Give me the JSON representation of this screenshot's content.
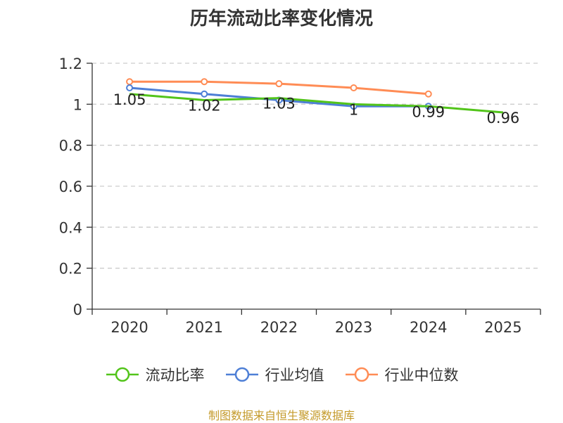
{
  "chart_data": {
    "type": "line",
    "title": "历年流动比率变化情况",
    "categories": [
      "2020",
      "2021",
      "2022",
      "2023",
      "2024",
      "2025"
    ],
    "ylim": [
      0,
      1.2
    ],
    "yticks": [
      "0",
      "0.2",
      "0.4",
      "0.6",
      "0.8",
      "1",
      "1.2"
    ],
    "grid": true,
    "legend_position": "bottom",
    "series": [
      {
        "name": "流动比率",
        "color": "#52c41a",
        "values": [
          1.05,
          1.02,
          1.03,
          1.0,
          0.99,
          0.96
        ],
        "labels": [
          "1.05",
          "1.02",
          "1.03",
          "1",
          "0.99",
          "0.96"
        ]
      },
      {
        "name": "行业均值",
        "color": "#4e7fd6",
        "values": [
          1.08,
          1.05,
          1.02,
          0.99,
          0.99,
          null
        ]
      },
      {
        "name": "行业中位数",
        "color": "#ff8c55",
        "values": [
          1.11,
          1.11,
          1.1,
          1.08,
          1.05,
          null
        ]
      }
    ]
  },
  "source_text": "制图数据来自恒生聚源数据库"
}
